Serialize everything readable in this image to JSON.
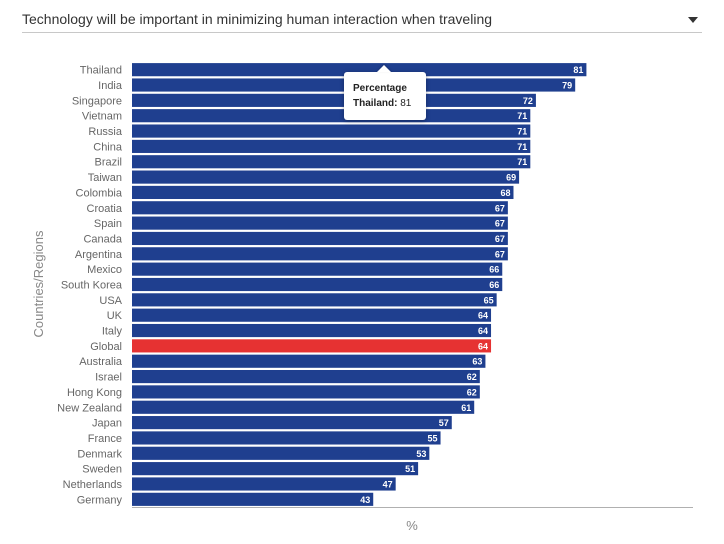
{
  "dropdown": {
    "selected": "Technology will be important in minimizing human interaction when traveling",
    "icon": "caret-down-icon"
  },
  "tooltip": {
    "title": "Percentage",
    "country": "Thailand",
    "separator": ":",
    "value": "81"
  },
  "chart_data": {
    "type": "bar",
    "orientation": "horizontal",
    "title": "",
    "xlabel": "%",
    "ylabel": "Countries/Regions",
    "xlim": [
      0,
      100
    ],
    "grid": false,
    "legend": "none",
    "colors": {
      "default": "#1f3f8f",
      "highlight": "#e63232",
      "label": "#ffffff",
      "tick": "#666666"
    },
    "highlight": "Global",
    "categories": [
      "Thailand",
      "India",
      "Singapore",
      "Vietnam",
      "Russia",
      "China",
      "Brazil",
      "Taiwan",
      "Colombia",
      "Croatia",
      "Spain",
      "Canada",
      "Argentina",
      "Mexico",
      "South Korea",
      "USA",
      "UK",
      "Italy",
      "Global",
      "Australia",
      "Israel",
      "Hong Kong",
      "New Zealand",
      "Japan",
      "France",
      "Denmark",
      "Sweden",
      "Netherlands",
      "Germany"
    ],
    "values": [
      81,
      79,
      72,
      71,
      71,
      71,
      71,
      69,
      68,
      67,
      67,
      67,
      67,
      66,
      66,
      65,
      64,
      64,
      64,
      63,
      62,
      62,
      61,
      57,
      55,
      53,
      51,
      47,
      43
    ]
  }
}
